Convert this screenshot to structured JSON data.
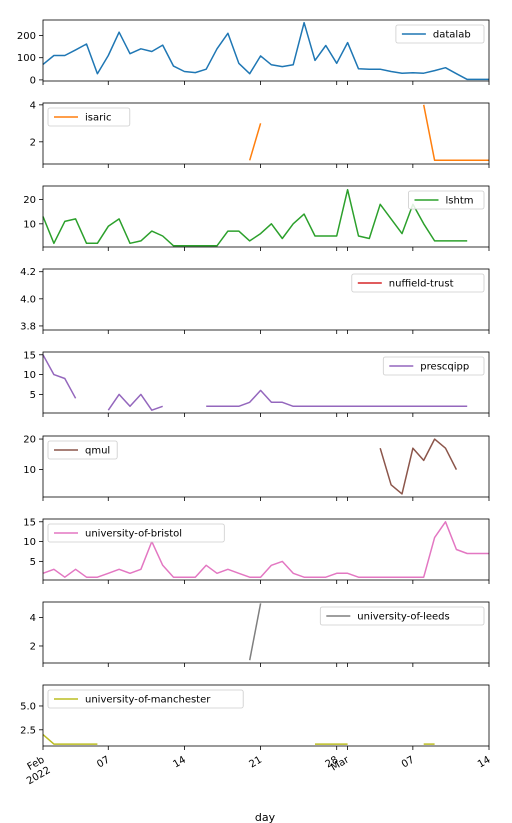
{
  "chart_data": {
    "type": "line",
    "xlabel": "day",
    "x_ticks": [
      {
        "day": 0,
        "label": "Feb",
        "label2": "2022"
      },
      {
        "day": 6,
        "label": "07"
      },
      {
        "day": 13,
        "label": "14"
      },
      {
        "day": 20,
        "label": "21"
      },
      {
        "day": 27,
        "label": "28"
      },
      {
        "day": 28,
        "label": "Mar"
      },
      {
        "day": 34,
        "label": "07"
      },
      {
        "day": 41,
        "label": "14"
      }
    ],
    "xlim": [
      0,
      41
    ],
    "panels": [
      {
        "name": "datalab",
        "color": "#1f77b4",
        "legend": "top-right",
        "ylim": [
          -5,
          270
        ],
        "yticks": [
          0,
          100,
          200
        ],
        "ytick_labels": [
          "0",
          "100",
          "200"
        ],
        "values": [
          70,
          110,
          110,
          135,
          162,
          28,
          110,
          215,
          118,
          140,
          128,
          157,
          62,
          38,
          33,
          48,
          140,
          210,
          75,
          28,
          108,
          68,
          60,
          68,
          258,
          88,
          155,
          75,
          168,
          50,
          48,
          48,
          38,
          30,
          32,
          30,
          42,
          55,
          28,
          2,
          2,
          2
        ]
      },
      {
        "name": "isaric",
        "color": "#ff7f0e",
        "legend": "top-left",
        "ylim": [
          0.8,
          4.1
        ],
        "yticks": [
          2,
          4
        ],
        "ytick_labels": [
          "2",
          "4"
        ],
        "values": [
          null,
          null,
          null,
          null,
          null,
          null,
          null,
          null,
          null,
          null,
          null,
          null,
          null,
          null,
          null,
          null,
          null,
          null,
          null,
          1,
          3,
          null,
          null,
          null,
          null,
          null,
          null,
          null,
          null,
          null,
          null,
          null,
          null,
          null,
          null,
          4,
          1,
          1,
          1,
          1,
          1,
          1
        ]
      },
      {
        "name": "lshtm",
        "color": "#2ca02c",
        "legend": "top-right",
        "ylim": [
          0.5,
          25.5
        ],
        "yticks": [
          10,
          20
        ],
        "ytick_labels": [
          "10",
          "20"
        ],
        "values": [
          13,
          2,
          11,
          12,
          2,
          2,
          9,
          12,
          2,
          3,
          7,
          5,
          1,
          1,
          1,
          1,
          1,
          7,
          7,
          3,
          6,
          10,
          4,
          10,
          14,
          5,
          5,
          5,
          24,
          5,
          4,
          18,
          12,
          6,
          18,
          10,
          3,
          3,
          3,
          3,
          null,
          null
        ]
      },
      {
        "name": "nuffield-trust",
        "color": "#d62728",
        "legend": "top-right",
        "ylim": [
          3.77,
          4.22
        ],
        "yticks": [
          3.8,
          4.0,
          4.2
        ],
        "ytick_labels": [
          "3.8",
          "4.0",
          "4.2"
        ],
        "values": []
      },
      {
        "name": "prescqipp",
        "color": "#9467bd",
        "legend": "top-right",
        "ylim": [
          0.3,
          15.7
        ],
        "yticks": [
          5,
          10,
          15
        ],
        "ytick_labels": [
          "5",
          "10",
          "15"
        ],
        "values": [
          15,
          10,
          9,
          4,
          null,
          null,
          1,
          5,
          2,
          5,
          1,
          2,
          null,
          null,
          null,
          2,
          2,
          2,
          2,
          3,
          6,
          3,
          3,
          2,
          2,
          2,
          2,
          2,
          2,
          2,
          2,
          2,
          2,
          2,
          2,
          2,
          2,
          2,
          2,
          2,
          null,
          null
        ]
      },
      {
        "name": "qmul",
        "color": "#8c564b",
        "legend": "top-left",
        "ylim": [
          1.0,
          21.0
        ],
        "yticks": [
          10,
          20
        ],
        "ytick_labels": [
          "10",
          "20"
        ],
        "values": [
          null,
          null,
          null,
          null,
          null,
          null,
          null,
          null,
          null,
          null,
          null,
          null,
          null,
          null,
          null,
          null,
          null,
          null,
          null,
          null,
          null,
          null,
          null,
          null,
          null,
          null,
          null,
          null,
          null,
          null,
          null,
          17,
          5,
          2,
          17,
          13,
          20,
          17,
          10,
          null,
          null,
          null
        ]
      },
      {
        "name": "university-of-bristol",
        "color": "#e377c2",
        "legend": "top-left",
        "ylim": [
          0.3,
          15.7
        ],
        "yticks": [
          5,
          10,
          15
        ],
        "ytick_labels": [
          "5",
          "10",
          "15"
        ],
        "values": [
          2,
          3,
          1,
          3,
          1,
          1,
          2,
          3,
          2,
          3,
          10,
          4,
          1,
          1,
          1,
          4,
          2,
          3,
          2,
          1,
          1,
          4,
          5,
          2,
          1,
          1,
          1,
          2,
          2,
          1,
          1,
          1,
          1,
          1,
          1,
          1,
          11,
          15,
          8,
          7,
          7,
          7
        ]
      },
      {
        "name": "university-of-leeds",
        "color": "#7f7f7f",
        "legend": "top-right",
        "ylim": [
          0.8,
          5.1
        ],
        "yticks": [
          2,
          4
        ],
        "ytick_labels": [
          "2",
          "4"
        ],
        "values": [
          null,
          null,
          null,
          null,
          null,
          null,
          null,
          null,
          null,
          null,
          null,
          null,
          null,
          null,
          null,
          null,
          null,
          null,
          null,
          1,
          5,
          null,
          null,
          null,
          null,
          null,
          null,
          null,
          null,
          null,
          null,
          null,
          null,
          null,
          null,
          null,
          null,
          null,
          null,
          null,
          null,
          null
        ]
      },
      {
        "name": "university-of-manchester",
        "color": "#bcbd22",
        "legend": "top-left",
        "ylim": [
          0.8,
          7.2
        ],
        "yticks": [
          2.5,
          5.0
        ],
        "ytick_labels": [
          "2.5",
          "5.0"
        ],
        "values": [
          2,
          1,
          1,
          1,
          1,
          1,
          null,
          null,
          null,
          null,
          null,
          null,
          null,
          null,
          null,
          null,
          null,
          null,
          null,
          null,
          null,
          null,
          null,
          null,
          null,
          1,
          1,
          1,
          1,
          null,
          null,
          null,
          null,
          null,
          null,
          1,
          1,
          null,
          null,
          null,
          null,
          null
        ]
      }
    ]
  }
}
